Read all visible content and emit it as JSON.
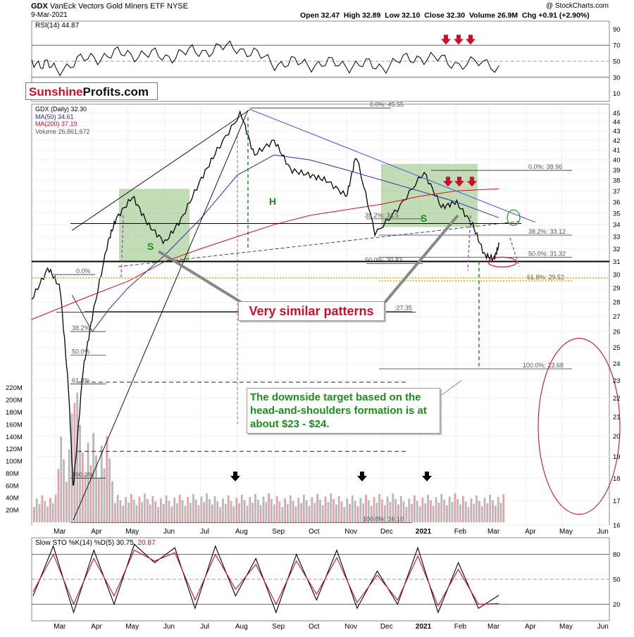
{
  "header": {
    "symbol": "GDX",
    "name": "VanEck Vectors Gold Miners ETF",
    "exchange": "NYSE",
    "date": "9-Mar-2021",
    "open": "Open 32.47",
    "high": "High 32.89",
    "low": "Low 32.10",
    "close": "Close 32.30",
    "volume": "Volume 26.9M",
    "change": "Chg +0.91 (+2.90%)",
    "copyright": "@ StockCharts.com"
  },
  "logo": {
    "part1": "Sunshine",
    "part2": "Profits.com"
  },
  "legend": {
    "price": "GDX (Daily) 32.30",
    "ma50": "MA(50) 34.61",
    "ma200": "MA(200) 37.19",
    "volume": "Volume 26,861,672",
    "rsi": "RSI(14) 44.87",
    "sto_prefix": "Slow STO %K(14) %D(5) 30.75,",
    "sto_d": "20.87"
  },
  "annotations": {
    "very_similar": "Very similar patterns",
    "target_text": "The downside target based on the head-and-shoulders formation is at about $23 - $24.",
    "label_h": "H",
    "label_s": "S"
  },
  "colors": {
    "ma50": "#2b2b9e",
    "ma200": "#c8102e",
    "resistance": "#6464e0",
    "box": "#8fbf7a",
    "annotation_red": "#c8102e",
    "fib_gold": "#e8a317",
    "target_green": "#1a8f1a"
  },
  "chart_data": [
    {
      "type": "line",
      "title": "RSI(14) 44.87",
      "ylim": [
        0,
        100
      ],
      "y_ticks": [
        10,
        30,
        50,
        70,
        90
      ],
      "reference_lines": [
        30,
        50,
        70
      ],
      "x": [
        "2020-02-10",
        "2020-03-01",
        "2020-04-01",
        "2020-05-01",
        "2020-06-01",
        "2020-07-01",
        "2020-08-01",
        "2020-09-01",
        "2020-10-01",
        "2020-11-01",
        "2020-12-01",
        "2021-01-01",
        "2021-02-01",
        "2021-03-09"
      ],
      "values": [
        52,
        40,
        55,
        60,
        56,
        63,
        68,
        48,
        47,
        46,
        44,
        56,
        48,
        45
      ]
    },
    {
      "type": "line",
      "title": "GDX (Daily) 32.30",
      "y_scale": "log",
      "ylim": [
        16,
        46
      ],
      "y_ticks": [
        16,
        17,
        18,
        19,
        20,
        21,
        22,
        23,
        24,
        25,
        26,
        27,
        28,
        29,
        30,
        31,
        32,
        33,
        34,
        35,
        36,
        37,
        38,
        39,
        40,
        41,
        42,
        43,
        44,
        45
      ],
      "x_ticks": [
        "Mar",
        "Apr",
        "May",
        "Jun",
        "Jul",
        "Aug",
        "Sep",
        "Oct",
        "Nov",
        "Dec",
        "2021",
        "Feb",
        "Mar",
        "Apr",
        "May",
        "Jun"
      ],
      "series": [
        {
          "name": "GDX (Daily) 32.30",
          "x": [
            "2020-02-10",
            "2020-02-24",
            "2020-03-05",
            "2020-03-12",
            "2020-03-16",
            "2020-03-24",
            "2020-04-01",
            "2020-04-14",
            "2020-04-21",
            "2020-05-05",
            "2020-05-18",
            "2020-06-01",
            "2020-06-15",
            "2020-07-01",
            "2020-07-15",
            "2020-08-04",
            "2020-08-15",
            "2020-09-01",
            "2020-09-15",
            "2020-10-01",
            "2020-10-15",
            "2020-11-01",
            "2020-11-09",
            "2020-11-25",
            "2020-12-15",
            "2021-01-05",
            "2021-01-20",
            "2021-02-01",
            "2021-02-15",
            "2021-02-25",
            "2021-03-05",
            "2021-03-09"
          ],
          "values": [
            28.2,
            30.5,
            29.0,
            22.5,
            17.5,
            23.5,
            27.0,
            32.5,
            34.5,
            36.5,
            34.0,
            32.5,
            34.5,
            38.0,
            41.0,
            45.0,
            40.5,
            42.0,
            39.0,
            38.5,
            38.0,
            36.5,
            40.5,
            33.2,
            35.5,
            38.8,
            35.5,
            36.0,
            34.0,
            31.5,
            31.2,
            32.3
          ]
        },
        {
          "name": "MA(50) 34.61",
          "x": [
            "2020-03-15",
            "2020-04-01",
            "2020-04-15",
            "2020-05-01",
            "2020-06-01",
            "2020-07-01",
            "2020-08-01",
            "2020-09-01",
            "2020-10-01",
            "2020-11-01",
            "2020-12-01",
            "2021-01-01",
            "2021-02-01",
            "2021-03-09"
          ],
          "values": [
            28.5,
            26.0,
            27.5,
            29.0,
            31.5,
            34.5,
            38.5,
            40.5,
            40.0,
            39.0,
            38.0,
            37.0,
            36.0,
            34.6
          ]
        },
        {
          "name": "MA(200) 37.19",
          "x": [
            "2020-02-10",
            "2020-04-01",
            "2020-05-01",
            "2020-06-01",
            "2020-07-01",
            "2020-08-01",
            "2020-09-01",
            "2020-10-01",
            "2020-11-01",
            "2020-12-01",
            "2021-01-01",
            "2021-02-01",
            "2021-03-09"
          ],
          "values": [
            26.8,
            28.5,
            29.5,
            31.0,
            32.0,
            33.0,
            34.0,
            34.8,
            35.3,
            35.8,
            36.5,
            37.0,
            37.2
          ]
        }
      ],
      "fibonacci_retracements": [
        {
          "label": "0.0%: 45.55",
          "value": 45.55
        },
        {
          "label": "0.0%: 38.96",
          "value": 38.96
        },
        {
          "label": "38.2%: 33.12",
          "value": 33.12
        },
        {
          "label": "50.0%: 31.32",
          "value": 31.32
        },
        {
          "label": "61.8%: 29.52",
          "value": 29.52
        },
        {
          "label": "100.0%: 23.68",
          "value": 23.68
        },
        {
          "label": "38.2%: 34.5",
          "value": 34.5
        },
        {
          "label": "50.0%: 30.83",
          "value": 30.83
        },
        {
          "label": ":27.35",
          "value": 27.35
        },
        {
          "label": "38.2%",
          "value": 26.0
        },
        {
          "label": "50.0%",
          "value": 24.5
        },
        {
          "label": "61.8%",
          "value": 22.8
        },
        {
          "label": "100.0%",
          "value": 18.0
        },
        {
          "label": "0.0%",
          "value": 30.0
        },
        {
          "label": "100.0%: 16.10",
          "value": 16.1
        }
      ],
      "volume": {
        "y_ticks": [
          "20M",
          "40M",
          "60M",
          "80M",
          "100M",
          "120M",
          "140M",
          "160M",
          "180M",
          "200M",
          "220M"
        ],
        "name": "Volume 26,861,672"
      }
    },
    {
      "type": "line",
      "title": "Slow STO %K(14) %D(5) 30.75, 20.87",
      "ylim": [
        0,
        100
      ],
      "y_ticks": [
        20,
        50,
        80
      ],
      "reference_lines": [
        20,
        50,
        80
      ],
      "x_ticks": [
        "Mar",
        "Apr",
        "May",
        "Jun",
        "Jul",
        "Aug",
        "Sep",
        "Oct",
        "Nov",
        "Dec",
        "2021",
        "Feb",
        "Mar",
        "Apr",
        "May",
        "Jun"
      ],
      "series": [
        {
          "name": "%K(14)",
          "values": [
            30,
            90,
            10,
            85,
            20,
            92,
            70,
            88,
            15,
            90,
            30,
            75,
            10,
            80,
            25,
            85,
            15,
            60,
            20,
            88,
            10,
            70,
            15,
            30.75
          ]
        },
        {
          "name": "%D(5)",
          "values": [
            35,
            80,
            20,
            75,
            30,
            85,
            72,
            82,
            25,
            80,
            38,
            68,
            20,
            72,
            32,
            76,
            22,
            55,
            25,
            78,
            18,
            62,
            20,
            20.87
          ]
        }
      ]
    }
  ]
}
